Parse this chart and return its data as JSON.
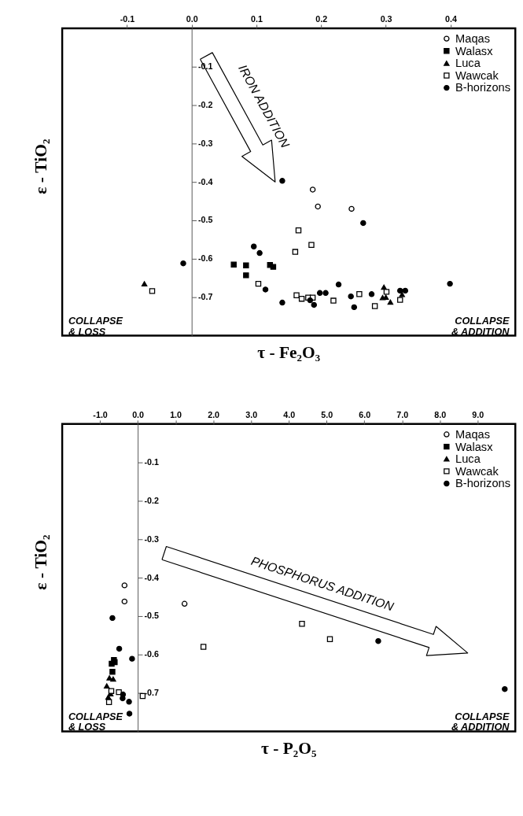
{
  "chart_data": [
    {
      "type": "scatter",
      "xlabel": "τ - Fe₂O₃",
      "ylabel": "ε - TiO₂",
      "legend": "top right",
      "xlim": [
        -0.2,
        0.5
      ],
      "ylim": [
        -0.8,
        0
      ],
      "xticks": [
        {
          "value": -0.1,
          "label": "-0.1"
        },
        {
          "value": 0,
          "label": "0.0"
        },
        {
          "value": 0.1,
          "label": "0.1"
        },
        {
          "value": 0.2,
          "label": "0.2"
        },
        {
          "value": 0.3,
          "label": "0.3"
        },
        {
          "value": 0.4,
          "label": "0.4"
        }
      ],
      "yticks": [
        {
          "value": -0.1,
          "label": "-0.1"
        },
        {
          "value": -0.2,
          "label": "-0.2"
        },
        {
          "value": -0.3,
          "label": "-0.3"
        },
        {
          "value": -0.4,
          "label": "-0.4"
        },
        {
          "value": -0.5,
          "label": "-0.5"
        },
        {
          "value": -0.6,
          "label": "-0.6"
        },
        {
          "value": -0.7,
          "label": "-0.7"
        }
      ],
      "annotations": [
        "IRON ADDITION",
        "COLLAPSE\n& LOSS",
        "COLLAPSE\n& ADDITION"
      ],
      "series": [
        {
          "name": "Maqas",
          "color": "#ffffff",
          "marker": "circle",
          "x": [
            0.187,
            0.195,
            0.247
          ],
          "values": [
            -0.42,
            -0.464,
            -0.47
          ]
        },
        {
          "name": "Walasx",
          "color": "#000000",
          "marker": "square",
          "x": [
            0.065,
            0.084,
            0.084,
            0.121,
            0.126
          ],
          "values": [
            -0.615,
            -0.617,
            -0.643,
            -0.616,
            -0.621
          ]
        },
        {
          "name": "Luca",
          "color": "#000000",
          "marker": "triangle",
          "x": [
            -0.073,
            0.297,
            0.295,
            0.3,
            0.307,
            0.325
          ],
          "values": [
            -0.665,
            -0.674,
            -0.701,
            -0.7,
            -0.713,
            -0.693
          ]
        },
        {
          "name": "Wawcak",
          "color": "#ffffff",
          "marker": "square",
          "x": [
            -0.061,
            0.103,
            0.165,
            0.185,
            0.16,
            0.162,
            0.17,
            0.18,
            0.187,
            0.219,
            0.259,
            0.283,
            0.301,
            0.322
          ],
          "values": [
            -0.684,
            -0.665,
            -0.526,
            -0.564,
            -0.582,
            -0.695,
            -0.704,
            -0.701,
            -0.701,
            -0.709,
            -0.692,
            -0.723,
            -0.686,
            -0.707
          ]
        },
        {
          "name": "B-horizons",
          "color": "#000000",
          "marker": "circle",
          "x": [
            0.14,
            0.096,
            0.105,
            -0.013,
            0.114,
            0.14,
            0.265,
            0.227,
            0.399,
            0.183,
            0.189,
            0.198,
            0.207,
            0.246,
            0.251,
            0.278,
            0.322,
            0.33
          ],
          "values": [
            -0.397,
            -0.568,
            -0.585,
            -0.612,
            -0.68,
            -0.714,
            -0.507,
            -0.667,
            -0.665,
            -0.708,
            -0.72,
            -0.689,
            -0.689,
            -0.698,
            -0.726,
            -0.692,
            -0.683,
            -0.683
          ]
        }
      ]
    },
    {
      "type": "scatter",
      "xlabel": "τ - P₂O₅",
      "ylabel": "ε - TiO₂",
      "legend": "top right",
      "xlim": [
        -2,
        10
      ],
      "ylim": [
        -0.8,
        0
      ],
      "xticks": [
        {
          "value": -1,
          "label": "-1.0"
        },
        {
          "value": 0,
          "label": "0.0"
        },
        {
          "value": 1,
          "label": "1.0"
        },
        {
          "value": 2,
          "label": "2.0"
        },
        {
          "value": 3,
          "label": "3.0"
        },
        {
          "value": 4,
          "label": "4.0"
        },
        {
          "value": 5,
          "label": "5.0"
        },
        {
          "value": 6,
          "label": "6.0"
        },
        {
          "value": 7,
          "label": "7.0"
        },
        {
          "value": 8,
          "label": "8.0"
        },
        {
          "value": 9,
          "label": "9.0"
        }
      ],
      "yticks": [
        {
          "value": -0.1,
          "label": "-0.1"
        },
        {
          "value": -0.2,
          "label": "-0.2"
        },
        {
          "value": -0.3,
          "label": "-0.3"
        },
        {
          "value": -0.4,
          "label": "-0.4"
        },
        {
          "value": -0.5,
          "label": "-0.5"
        },
        {
          "value": -0.6,
          "label": "-0.6"
        },
        {
          "value": -0.7,
          "label": "-0.7"
        }
      ],
      "annotations": [
        "PHOSPHORUS  ADDITION",
        "COLLAPSE\n& LOSS",
        "COLLAPSE\n& ADDITION"
      ],
      "series": [
        {
          "name": "Maqas",
          "color": "#ffffff",
          "marker": "circle",
          "x": [
            -0.35,
            -0.35,
            1.24
          ],
          "values": [
            -0.42,
            -0.462,
            -0.468
          ]
        },
        {
          "name": "Walasx",
          "color": "#000000",
          "marker": "square",
          "x": [
            -0.63,
            -0.61,
            -0.69,
            -0.67
          ],
          "values": [
            -0.614,
            -0.62,
            -0.624,
            -0.645
          ]
        },
        {
          "name": "Luca",
          "color": "#000000",
          "marker": "triangle",
          "x": [
            -0.75,
            -0.65,
            -0.82,
            -0.72,
            -0.78
          ],
          "values": [
            -0.661,
            -0.664,
            -0.682,
            -0.702,
            -0.711
          ]
        },
        {
          "name": "Wawcak",
          "color": "#ffffff",
          "marker": "square",
          "x": [
            -0.5,
            0.13,
            -0.76,
            -0.7,
            1.74,
            4.35,
            5.09
          ],
          "values": [
            -0.698,
            -0.708,
            -0.724,
            -0.695,
            -0.58,
            -0.52,
            -0.56
          ]
        },
        {
          "name": "B-horizons",
          "color": "#000000",
          "marker": "circle",
          "x": [
            -0.67,
            -0.49,
            -0.15,
            -0.39,
            -0.4,
            -0.23,
            -0.22,
            6.37,
            9.72
          ],
          "values": [
            -0.505,
            -0.585,
            -0.611,
            -0.704,
            -0.714,
            -0.723,
            -0.754,
            -0.565,
            -0.69
          ]
        }
      ]
    }
  ]
}
